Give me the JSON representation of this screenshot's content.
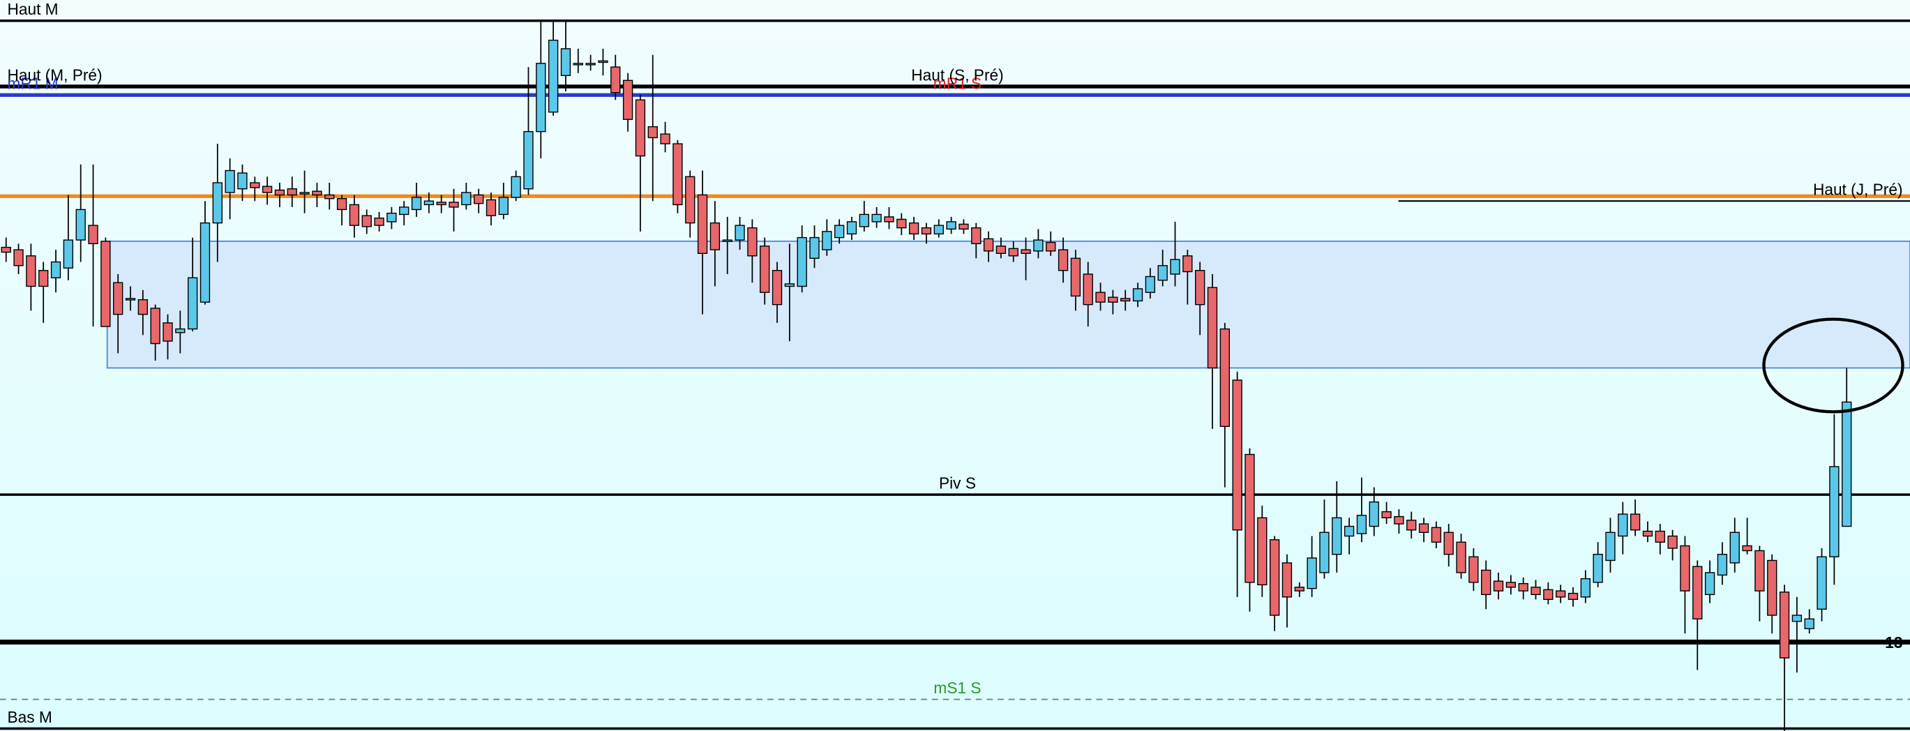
{
  "chart_data": {
    "type": "candlestick",
    "ylim": [
      0,
      600
    ],
    "up_color": "#5bc8ea",
    "down_color": "#e8676a",
    "zone": {
      "from": 298,
      "to": 402,
      "color": "#d6eafc",
      "stroke": "#4a86d8"
    },
    "levels": [
      {
        "label": "Haut M",
        "value": 583,
        "color": "#000000",
        "width": 2,
        "label_pos": "left"
      },
      {
        "label": "mR1 S",
        "value": 522,
        "color": "#e02020",
        "width": 2,
        "label_pos": "center",
        "label_color": "#e02020"
      },
      {
        "label": "mR1 M",
        "value": 522,
        "color": "#2a3acc",
        "width": 3,
        "label_pos": "left",
        "label_color": "#2a3acc"
      },
      {
        "label": "Haut (M, Pré)",
        "value": 529,
        "color": "#000000",
        "width": 3,
        "label_pos": "left"
      },
      {
        "label": "Haut (S, Pré)",
        "value": 529,
        "color": "#000000",
        "width": 3,
        "label_pos": "center"
      },
      {
        "value": 439,
        "color": "#f08a1c",
        "width": 3
      },
      {
        "label": "Haut (J, Pré)",
        "value": 435,
        "color": "#000000",
        "width": 1.2,
        "label_pos": "right",
        "partial": true
      },
      {
        "label": "Piv S",
        "value": 194,
        "color": "#000000",
        "width": 2,
        "label_pos": "center"
      },
      {
        "label": "13",
        "value": 73,
        "color": "#000000",
        "width": 4,
        "label_pos": "right",
        "bold": true
      },
      {
        "label": "mS1 S",
        "value": 26,
        "color": "#5a8a6a",
        "width": 1,
        "dash": true,
        "label_pos": "center",
        "label_color": "#2a9a2a"
      },
      {
        "label": "Bas M",
        "value": 2,
        "color": "#000000",
        "width": 2,
        "label_pos": "left"
      }
    ],
    "ohlc": [
      [
        397,
        405,
        385,
        393
      ],
      [
        395,
        400,
        375,
        382
      ],
      [
        390,
        400,
        345,
        365
      ],
      [
        378,
        385,
        335,
        365
      ],
      [
        372,
        395,
        360,
        385
      ],
      [
        380,
        440,
        370,
        403
      ],
      [
        403,
        465,
        385,
        428
      ],
      [
        415,
        465,
        332,
        400
      ],
      [
        402,
        405,
        332,
        332
      ],
      [
        368,
        375,
        310,
        342
      ],
      [
        355,
        365,
        345,
        355
      ],
      [
        354,
        362,
        325,
        342
      ],
      [
        347,
        350,
        304,
        318
      ],
      [
        335,
        342,
        305,
        320
      ],
      [
        327,
        345,
        310,
        330
      ],
      [
        330,
        405,
        328,
        372
      ],
      [
        352,
        435,
        350,
        417
      ],
      [
        417,
        482,
        385,
        450
      ],
      [
        442,
        470,
        420,
        460
      ],
      [
        445,
        465,
        435,
        458
      ],
      [
        450,
        455,
        435,
        446
      ],
      [
        447,
        455,
        432,
        442
      ],
      [
        444,
        450,
        430,
        440
      ],
      [
        445,
        455,
        430,
        440
      ],
      [
        442,
        460,
        425,
        442
      ],
      [
        443,
        450,
        430,
        440
      ],
      [
        440,
        450,
        428,
        437
      ],
      [
        437,
        440,
        415,
        428
      ],
      [
        432,
        440,
        405,
        415
      ],
      [
        423,
        428,
        408,
        414
      ],
      [
        421,
        426,
        410,
        415
      ],
      [
        418,
        430,
        412,
        425
      ],
      [
        424,
        435,
        415,
        430
      ],
      [
        428,
        450,
        422,
        438
      ],
      [
        432,
        442,
        425,
        435
      ],
      [
        434,
        440,
        425,
        432
      ],
      [
        434,
        445,
        410,
        430
      ],
      [
        432,
        450,
        428,
        442
      ],
      [
        440,
        445,
        425,
        433
      ],
      [
        436,
        442,
        415,
        423
      ],
      [
        424,
        450,
        420,
        438
      ],
      [
        438,
        460,
        435,
        455
      ],
      [
        445,
        545,
        440,
        492
      ],
      [
        492,
        582,
        470,
        548
      ],
      [
        508,
        582,
        505,
        567
      ],
      [
        538,
        582,
        525,
        560
      ],
      [
        548,
        560,
        540,
        548
      ],
      [
        548,
        555,
        542,
        548
      ],
      [
        550,
        560,
        538,
        550
      ],
      [
        545,
        555,
        518,
        524
      ],
      [
        534,
        540,
        492,
        502
      ],
      [
        518,
        522,
        410,
        472
      ],
      [
        496,
        555,
        435,
        487
      ],
      [
        490,
        500,
        475,
        482
      ],
      [
        482,
        485,
        425,
        432
      ],
      [
        455,
        460,
        405,
        417
      ],
      [
        440,
        460,
        342,
        392
      ],
      [
        417,
        435,
        365,
        395
      ],
      [
        403,
        422,
        375,
        403
      ],
      [
        403,
        422,
        395,
        415
      ],
      [
        413,
        420,
        368,
        390
      ],
      [
        398,
        405,
        350,
        360
      ],
      [
        378,
        385,
        335,
        350
      ],
      [
        365,
        400,
        320,
        367
      ],
      [
        365,
        415,
        360,
        405
      ],
      [
        388,
        415,
        380,
        405
      ],
      [
        395,
        420,
        390,
        410
      ],
      [
        405,
        420,
        400,
        415
      ],
      [
        408,
        422,
        403,
        418
      ],
      [
        414,
        435,
        410,
        424
      ],
      [
        418,
        430,
        413,
        424
      ],
      [
        422,
        430,
        412,
        418
      ],
      [
        420,
        425,
        407,
        413
      ],
      [
        417,
        422,
        403,
        408
      ],
      [
        413,
        417,
        400,
        408
      ],
      [
        408,
        420,
        405,
        415
      ],
      [
        412,
        422,
        408,
        418
      ],
      [
        416,
        420,
        408,
        412
      ],
      [
        413,
        417,
        388,
        400
      ],
      [
        404,
        410,
        385,
        394
      ],
      [
        398,
        405,
        388,
        392
      ],
      [
        396,
        402,
        385,
        390
      ],
      [
        395,
        405,
        370,
        392
      ],
      [
        394,
        412,
        388,
        403
      ],
      [
        401,
        410,
        390,
        394
      ],
      [
        395,
        405,
        368,
        378
      ],
      [
        388,
        395,
        345,
        357
      ],
      [
        375,
        385,
        332,
        350
      ],
      [
        360,
        368,
        345,
        352
      ],
      [
        356,
        362,
        342,
        352
      ],
      [
        355,
        362,
        345,
        353
      ],
      [
        353,
        368,
        348,
        363
      ],
      [
        360,
        380,
        355,
        373
      ],
      [
        370,
        395,
        365,
        382
      ],
      [
        375,
        418,
        365,
        387
      ],
      [
        390,
        395,
        350,
        377
      ],
      [
        378,
        385,
        325,
        350
      ],
      [
        364,
        375,
        248,
        298
      ],
      [
        330,
        335,
        200,
        250
      ],
      [
        288,
        295,
        110,
        165
      ],
      [
        227,
        232,
        98,
        122
      ],
      [
        175,
        185,
        110,
        120
      ],
      [
        157,
        160,
        82,
        95
      ],
      [
        138,
        145,
        85,
        110
      ],
      [
        118,
        122,
        110,
        115
      ],
      [
        117,
        160,
        110,
        142
      ],
      [
        130,
        190,
        125,
        163
      ],
      [
        145,
        205,
        130,
        175
      ],
      [
        160,
        175,
        145,
        168
      ],
      [
        162,
        208,
        155,
        177
      ],
      [
        168,
        200,
        160,
        188
      ],
      [
        180,
        188,
        170,
        175
      ],
      [
        176,
        182,
        162,
        170
      ],
      [
        173,
        180,
        158,
        165
      ],
      [
        170,
        175,
        155,
        163
      ],
      [
        167,
        172,
        150,
        155
      ],
      [
        163,
        170,
        135,
        145
      ],
      [
        155,
        162,
        125,
        130
      ],
      [
        143,
        150,
        115,
        122
      ],
      [
        132,
        140,
        100,
        112
      ],
      [
        123,
        130,
        108,
        115
      ],
      [
        122,
        128,
        112,
        118
      ],
      [
        121,
        126,
        108,
        115
      ],
      [
        118,
        124,
        108,
        112
      ],
      [
        116,
        122,
        104,
        108
      ],
      [
        115,
        120,
        105,
        110
      ],
      [
        113,
        118,
        102,
        108
      ],
      [
        110,
        132,
        105,
        125
      ],
      [
        122,
        155,
        118,
        145
      ],
      [
        140,
        175,
        130,
        163
      ],
      [
        160,
        188,
        145,
        178
      ],
      [
        178,
        190,
        160,
        165
      ],
      [
        164,
        172,
        155,
        160
      ],
      [
        164,
        170,
        145,
        155
      ],
      [
        160,
        165,
        140,
        150
      ],
      [
        152,
        160,
        80,
        115
      ],
      [
        135,
        140,
        50,
        92
      ],
      [
        112,
        140,
        105,
        130
      ],
      [
        128,
        155,
        120,
        145
      ],
      [
        138,
        175,
        130,
        163
      ],
      [
        152,
        175,
        145,
        148
      ],
      [
        148,
        152,
        90,
        115
      ],
      [
        140,
        145,
        80,
        95
      ],
      [
        114,
        120,
        0,
        60
      ],
      [
        90,
        110,
        48,
        95
      ],
      [
        84,
        100,
        80,
        92
      ],
      [
        100,
        150,
        90,
        143
      ],
      [
        143,
        260,
        120,
        217
      ],
      [
        168,
        298,
        168,
        270
      ]
    ]
  }
}
